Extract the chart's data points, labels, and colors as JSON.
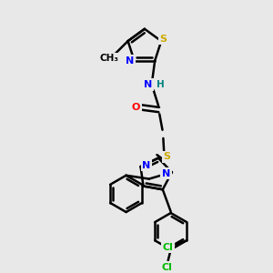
{
  "background_color": "#e8e8e8",
  "atom_colors": {
    "C": "#000000",
    "N": "#0000ff",
    "O": "#ff0000",
    "S": "#ccaa00",
    "Cl": "#00bb00",
    "H": "#008080"
  },
  "bond_color": "#000000",
  "bond_width": 1.8,
  "figsize": [
    3.0,
    3.0
  ],
  "dpi": 100
}
